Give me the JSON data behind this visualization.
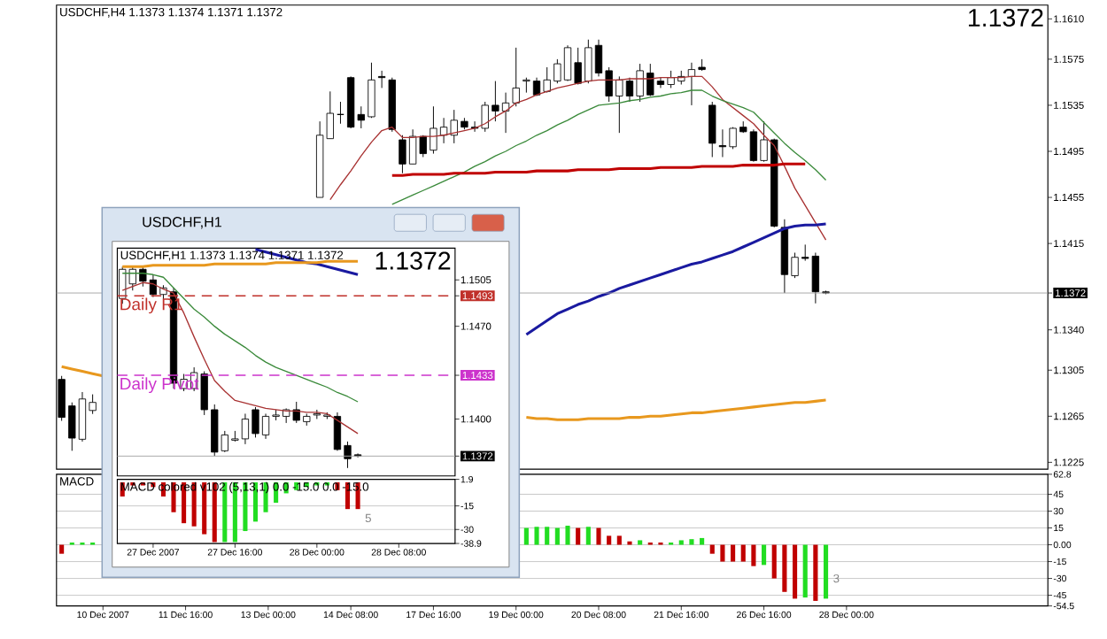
{
  "chart_data": [
    {
      "type": "candlestick",
      "title": "USDCHF,H4  1.1373 1.1374 1.1371 1.1372",
      "annotations": [
        "1.1372"
      ],
      "categories": [
        null,
        null,
        null,
        null,
        null,
        null,
        null,
        null,
        null,
        null,
        null,
        null,
        null,
        null,
        null,
        null,
        null,
        null,
        null,
        null,
        null,
        null,
        null,
        null,
        null,
        null,
        null,
        null,
        null,
        null,
        null,
        null,
        null,
        null,
        null,
        null,
        null,
        null,
        null,
        null,
        null,
        null,
        null,
        null,
        null,
        null,
        null,
        null,
        null,
        null,
        null,
        null,
        null,
        null,
        null,
        null,
        null,
        null,
        null,
        null,
        null,
        null,
        null,
        null,
        null,
        null,
        null,
        null,
        null,
        null,
        null,
        null,
        null,
        null,
        null,
        null,
        null,
        null,
        null,
        null,
        null,
        null,
        null,
        null,
        null,
        null,
        null,
        null,
        null,
        null,
        null,
        null,
        null,
        null,
        null,
        null
      ],
      "ohlc": [
        [
          1.1297,
          1.13,
          1.1261,
          1.1264
        ],
        [
          1.1274,
          1.1277,
          1.1235,
          1.1246
        ],
        [
          1.1245,
          1.1286,
          1.1243,
          1.128
        ],
        [
          1.127,
          1.1284,
          1.1267,
          1.1277
        ],
        null,
        null,
        null,
        null,
        null,
        null,
        null,
        null,
        null,
        null,
        null,
        null,
        null,
        null,
        null,
        null,
        null,
        null,
        null,
        null,
        null,
        [
          1.1455,
          1.1521,
          1.1455,
          1.1509
        ],
        [
          1.1506,
          1.1547,
          1.1506,
          1.1528
        ],
        [
          1.1527,
          1.1538,
          1.1519,
          1.1527
        ],
        [
          1.1559,
          1.156,
          1.1515,
          1.1516
        ],
        [
          1.1527,
          1.1534,
          1.1515,
          1.1522
        ],
        [
          1.1525,
          1.1572,
          1.1524,
          1.1557
        ],
        [
          1.156,
          1.1565,
          1.155,
          1.1559
        ],
        [
          1.1557,
          1.1559,
          1.1512,
          1.1514
        ],
        [
          1.1505,
          1.1509,
          1.1476,
          1.1484
        ],
        [
          1.1484,
          1.1514,
          1.1484,
          1.1508
        ],
        [
          1.1508,
          1.1509,
          1.149,
          1.1493
        ],
        [
          1.1496,
          1.1534,
          1.1493,
          1.1515
        ],
        [
          1.1509,
          1.1524,
          1.1502,
          1.1516
        ],
        [
          1.1509,
          1.1531,
          1.1502,
          1.1522
        ],
        [
          1.1521,
          1.1524,
          1.1514,
          1.1516
        ],
        [
          1.1516,
          1.1521,
          1.1512,
          1.1515
        ],
        [
          1.1515,
          1.1538,
          1.1512,
          1.1535
        ],
        [
          1.1535,
          1.1556,
          1.1521,
          1.153
        ],
        [
          1.153,
          1.1546,
          1.1511,
          1.1537
        ],
        [
          1.1537,
          1.1585,
          1.1534,
          1.155
        ],
        [
          1.1556,
          1.1559,
          1.1546,
          1.1557
        ],
        [
          1.1556,
          1.1559,
          1.1543,
          1.1544
        ],
        [
          1.1547,
          1.1568,
          1.1546,
          1.1557
        ],
        [
          1.1556,
          1.1575,
          1.1554,
          1.1571
        ],
        [
          1.1557,
          1.1587,
          1.1556,
          1.1585
        ],
        [
          1.1572,
          1.1585,
          1.1553,
          1.1554
        ],
        [
          1.1556,
          1.1592,
          1.1554,
          1.1585
        ],
        [
          1.1587,
          1.1592,
          1.156,
          1.1563
        ],
        [
          1.1565,
          1.1568,
          1.1538,
          1.1543
        ],
        [
          1.1543,
          1.156,
          1.1511,
          1.1557
        ],
        [
          1.1556,
          1.1559,
          1.1538,
          1.1543
        ],
        [
          1.1543,
          1.1571,
          1.1538,
          1.1565
        ],
        [
          1.1563,
          1.1571,
          1.1543,
          1.1544
        ],
        [
          1.1556,
          1.1559,
          1.155,
          1.1553
        ],
        [
          1.1553,
          1.1565,
          1.155,
          1.1559
        ],
        [
          1.1556,
          1.1565,
          1.1553,
          1.156
        ],
        [
          1.156,
          1.1572,
          1.1535,
          1.1566
        ],
        [
          1.1568,
          1.1575,
          1.1565,
          1.1566
        ],
        [
          1.1535,
          1.1538,
          1.149,
          1.1502
        ],
        [
          1.15,
          1.1514,
          1.149,
          1.1499
        ],
        [
          1.1499,
          1.1516,
          1.1497,
          1.1515
        ],
        [
          1.1516,
          1.1521,
          1.1511,
          1.1512
        ],
        [
          1.1512,
          1.1514,
          1.1486,
          1.1487
        ],
        [
          1.1487,
          1.1521,
          1.1486,
          1.1505
        ],
        [
          1.1505,
          1.1506,
          1.1429,
          1.143
        ],
        [
          1.1429,
          1.1436,
          1.1372,
          1.1388
        ],
        [
          1.1387,
          1.1407,
          1.1385,
          1.1403
        ],
        [
          1.1403,
          1.1414,
          1.14,
          1.1402
        ],
        [
          1.1404,
          1.1407,
          1.1363,
          1.1373
        ],
        [
          1.1373,
          1.1374,
          1.1371,
          1.1372
        ],
        null,
        null,
        null,
        null,
        null,
        null,
        null,
        null,
        null,
        null,
        null,
        null,
        null,
        null,
        null,
        null,
        null,
        null,
        null,
        null,
        null
      ],
      "series": [
        {
          "type": "line",
          "color": "#a83232",
          "values": [
            null,
            null,
            null,
            null,
            null,
            null,
            null,
            null,
            null,
            null,
            null,
            null,
            null,
            null,
            null,
            null,
            null,
            null,
            null,
            null,
            null,
            null,
            null,
            null,
            null,
            null,
            1.1453,
            1.1466,
            1.1478,
            1.1491,
            1.1503,
            1.1513,
            1.1516,
            1.1507,
            1.1507,
            1.1508,
            1.1508,
            1.1509,
            1.1511,
            1.1513,
            1.1515,
            1.1519,
            1.1525,
            1.153,
            1.1537,
            1.154,
            1.1544,
            1.1547,
            1.155,
            1.1552,
            1.1554,
            1.1556,
            1.1557,
            1.1557,
            1.1557,
            1.1558,
            1.1558,
            1.1558,
            1.1559,
            1.1559,
            1.1559,
            1.156,
            1.156,
            1.1551,
            1.154,
            1.1533,
            1.1526,
            1.1519,
            1.1509,
            1.15,
            1.1482,
            1.1463,
            1.1448,
            1.1433,
            1.1418,
            null,
            null,
            null,
            null,
            null,
            null,
            null,
            null,
            null,
            null,
            null,
            null,
            null,
            null,
            null,
            null,
            null,
            null,
            null,
            null,
            null
          ]
        },
        {
          "type": "line",
          "color": "#3a8a3a",
          "values": [
            null,
            null,
            null,
            null,
            null,
            null,
            null,
            null,
            null,
            null,
            null,
            null,
            null,
            null,
            null,
            null,
            null,
            null,
            null,
            null,
            null,
            null,
            null,
            null,
            null,
            null,
            null,
            null,
            null,
            null,
            null,
            null,
            1.1449,
            1.1453,
            1.1457,
            1.1461,
            1.1465,
            1.1469,
            1.1473,
            1.1477,
            1.1482,
            1.1486,
            1.1491,
            1.1495,
            1.15,
            1.1504,
            1.1509,
            1.1513,
            1.1518,
            1.1522,
            1.1527,
            1.1531,
            1.1535,
            1.1536,
            1.1537,
            1.1539,
            1.154,
            1.1542,
            1.1543,
            1.1545,
            1.1546,
            1.1548,
            1.1548,
            1.1543,
            1.1539,
            1.1536,
            1.1533,
            1.1529,
            1.152,
            1.1511,
            1.1502,
            1.1494,
            1.1487,
            1.1479,
            1.147,
            null,
            null,
            null,
            null,
            null,
            null,
            null,
            null,
            null,
            null,
            null,
            null,
            null,
            null,
            null,
            null,
            null,
            null,
            null,
            null,
            null
          ]
        },
        {
          "type": "line",
          "color": "#1a1aa0",
          "values": [
            null,
            null,
            null,
            null,
            null,
            null,
            null,
            null,
            null,
            null,
            null,
            null,
            null,
            null,
            null,
            null,
            null,
            null,
            null,
            null,
            null,
            null,
            null,
            null,
            null,
            null,
            null,
            null,
            null,
            null,
            null,
            null,
            null,
            null,
            null,
            null,
            null,
            null,
            null,
            null,
            null,
            null,
            null,
            null,
            null,
            1.1336,
            1.1342,
            1.1348,
            1.1354,
            1.1358,
            1.1362,
            1.1365,
            1.1369,
            1.1372,
            1.1376,
            1.1379,
            1.1382,
            1.1385,
            1.1388,
            1.1391,
            1.1394,
            1.1397,
            1.1399,
            1.1402,
            1.1405,
            1.1408,
            1.1412,
            1.1416,
            1.142,
            1.1424,
            1.1428,
            1.143,
            1.1431,
            1.1431,
            1.1432,
            null,
            null,
            null,
            null,
            null,
            null,
            null,
            null,
            null,
            null,
            null,
            null,
            null,
            null,
            null,
            null,
            null,
            null,
            null,
            null,
            null
          ]
        },
        {
          "type": "line",
          "color": "#e8981e",
          "values": [
            1.1308,
            1.1306,
            1.1304,
            1.1302,
            1.13,
            null,
            null,
            null,
            null,
            null,
            null,
            null,
            null,
            null,
            null,
            null,
            null,
            null,
            null,
            null,
            null,
            null,
            null,
            null,
            null,
            null,
            null,
            null,
            null,
            null,
            null,
            null,
            null,
            null,
            null,
            null,
            null,
            null,
            null,
            null,
            null,
            null,
            null,
            null,
            null,
            1.1264,
            1.1263,
            1.1263,
            1.1262,
            1.1262,
            1.1262,
            1.1263,
            1.1263,
            1.1263,
            1.1263,
            1.1264,
            1.1264,
            1.1265,
            1.1265,
            1.1266,
            1.1267,
            1.1268,
            1.1268,
            1.1269,
            1.127,
            1.1271,
            1.1272,
            1.1273,
            1.1274,
            1.1275,
            1.1276,
            1.1277,
            1.1277,
            1.1278,
            1.1279,
            null,
            null,
            null,
            null,
            null,
            null,
            null,
            null,
            null,
            null,
            null,
            null,
            null,
            null,
            null,
            null,
            null,
            null,
            null,
            null,
            null
          ]
        },
        {
          "type": "line",
          "color": "#c00000",
          "values": [
            null,
            null,
            null,
            null,
            null,
            null,
            null,
            null,
            null,
            null,
            null,
            null,
            null,
            null,
            null,
            null,
            null,
            null,
            null,
            null,
            null,
            null,
            null,
            null,
            null,
            null,
            null,
            null,
            null,
            null,
            null,
            null,
            1.1474,
            1.1474,
            1.1475,
            1.1475,
            1.1475,
            1.1475,
            1.1476,
            1.1476,
            1.1476,
            1.1476,
            1.1477,
            1.1477,
            1.1477,
            1.1477,
            1.1478,
            1.1478,
            1.1478,
            1.1478,
            1.1479,
            1.1479,
            1.1479,
            1.1479,
            1.148,
            1.148,
            1.148,
            1.148,
            1.1481,
            1.1481,
            1.1481,
            1.1481,
            1.1482,
            1.1482,
            1.1482,
            1.1482,
            1.1483,
            1.1483,
            1.1483,
            1.1483,
            1.1484,
            1.1484,
            1.1484,
            null,
            null,
            null,
            null,
            null,
            null,
            null,
            null,
            null,
            null,
            null,
            null,
            null,
            null,
            null,
            null,
            null,
            null,
            null,
            null,
            null,
            null,
            null
          ]
        }
      ],
      "ylim": [
        1.1219,
        1.1622
      ],
      "yticks": [
        {
          "value": 1.161,
          "label": "1.1610"
        },
        1.1575,
        1.1535,
        1.1495,
        1.1455,
        1.1415,
        1.1372,
        {
          "value": 1.134,
          "label": "1.1340"
        },
        1.1305,
        1.1265,
        1.1225
      ],
      "ref_lines": [
        {
          "axis": "y",
          "value": 1.1372,
          "color": "#a6a6a6"
        }
      ]
    },
    {
      "type": "bar",
      "title": "MACD",
      "annotations": [
        "3"
      ],
      "grid": "y",
      "categories": [
        null,
        null,
        null,
        null,
        "10 Dec 2007",
        null,
        null,
        null,
        null,
        null,
        null,
        null,
        "11 Dec 16:00",
        null,
        null,
        null,
        null,
        null,
        null,
        null,
        "13 Dec 00:00",
        null,
        null,
        null,
        null,
        null,
        null,
        null,
        "14 Dec 08:00",
        null,
        null,
        null,
        null,
        null,
        null,
        null,
        "17 Dec 16:00",
        null,
        null,
        null,
        null,
        null,
        null,
        null,
        "19 Dec 00:00",
        null,
        null,
        null,
        null,
        null,
        null,
        null,
        "20 Dec 08:00",
        null,
        null,
        null,
        null,
        null,
        null,
        null,
        "21 Dec 16:00",
        null,
        null,
        null,
        null,
        null,
        null,
        null,
        "26 Dec 16:00",
        null,
        null,
        null,
        null,
        null,
        null,
        null,
        "28 Dec 00:00",
        null,
        null,
        null,
        null,
        null,
        null,
        null,
        null,
        null,
        null,
        null,
        null,
        null,
        null,
        null,
        null,
        null,
        null,
        null
      ],
      "values": [
        -8,
        2,
        2,
        2,
        null,
        null,
        null,
        null,
        null,
        null,
        null,
        null,
        null,
        null,
        null,
        null,
        null,
        null,
        null,
        null,
        null,
        null,
        null,
        null,
        null,
        null,
        null,
        null,
        null,
        null,
        null,
        null,
        null,
        null,
        null,
        null,
        null,
        null,
        null,
        null,
        null,
        null,
        null,
        null,
        null,
        15,
        16,
        16,
        15,
        17,
        15,
        16,
        15,
        8,
        8,
        3,
        4,
        2,
        2,
        2,
        4,
        5,
        6,
        -8,
        -15,
        -15,
        -15,
        -19,
        -18,
        -30,
        -42,
        -48,
        -47,
        -50,
        -48,
        null,
        null,
        null,
        null,
        null,
        null,
        null,
        null,
        null,
        null,
        null,
        null,
        null,
        null,
        null,
        null,
        null,
        null,
        null,
        null,
        null
      ],
      "colors": [
        "#c00000",
        "#22dd22",
        "#22dd22",
        "#22dd22",
        null,
        null,
        null,
        null,
        null,
        null,
        null,
        null,
        null,
        null,
        null,
        null,
        null,
        null,
        null,
        null,
        null,
        null,
        null,
        null,
        null,
        null,
        null,
        null,
        null,
        null,
        null,
        null,
        null,
        null,
        null,
        null,
        null,
        null,
        null,
        null,
        null,
        null,
        null,
        null,
        null,
        "#22dd22",
        "#22dd22",
        "#22dd22",
        "#22dd22",
        "#22dd22",
        "#c00000",
        "#22dd22",
        "#c00000",
        "#c00000",
        "#c00000",
        "#c00000",
        "#22dd22",
        "#c00000",
        "#c00000",
        "#22dd22",
        "#22dd22",
        "#22dd22",
        "#22dd22",
        "#c00000",
        "#c00000",
        "#c00000",
        "#c00000",
        "#c00000",
        "#22dd22",
        "#c00000",
        "#c00000",
        "#c00000",
        "#22dd22",
        "#c00000",
        "#22dd22",
        null,
        null,
        null,
        null,
        null,
        null,
        null,
        null,
        null,
        null,
        null,
        null,
        null,
        null,
        null,
        null,
        null,
        null,
        null,
        null,
        null
      ],
      "ylim": [
        -54.5,
        62.8
      ],
      "yticks": [
        62.8,
        45,
        30,
        15,
        {
          "value": 0,
          "label": "0.00"
        },
        -15,
        -30,
        -45,
        -54.5
      ]
    },
    {
      "type": "candlestick",
      "title": "USDCHF,H1",
      "subtitle": "USDCHF,H1  1.1373 1.1374 1.1371 1.1372",
      "annotations": [
        "1.1372"
      ],
      "categories": [
        null,
        null,
        null,
        null,
        null,
        null,
        null,
        null,
        null,
        null,
        null,
        null,
        null,
        null,
        null,
        null,
        null,
        null,
        null,
        null,
        null,
        null,
        null,
        null,
        null,
        null,
        null,
        null,
        null,
        null,
        null,
        null,
        null
      ],
      "ohlc": [
        [
          1.1491,
          1.1515,
          1.1487,
          1.1513
        ],
        [
          1.1502,
          1.1515,
          1.1497,
          1.1513
        ],
        [
          1.1513,
          1.1515,
          1.15,
          1.1504
        ],
        [
          1.1505,
          1.1509,
          1.1492,
          1.1494
        ],
        [
          1.1494,
          1.1501,
          1.149,
          1.1499
        ],
        [
          1.1496,
          1.1499,
          1.1423,
          1.1427
        ],
        [
          1.1423,
          1.1434,
          1.1421,
          1.143
        ],
        [
          1.1423,
          1.1439,
          1.1421,
          1.1435
        ],
        [
          1.1434,
          1.1436,
          1.1403,
          1.1407
        ],
        [
          1.1407,
          1.1411,
          1.1372,
          1.1375
        ],
        [
          1.1376,
          1.1391,
          1.1375,
          1.1388
        ],
        [
          1.1384,
          1.1391,
          1.1383,
          1.1385
        ],
        [
          1.1385,
          1.1404,
          1.1381,
          1.14
        ],
        [
          1.1407,
          1.1409,
          1.1386,
          1.1389
        ],
        [
          1.1388,
          1.1404,
          1.1385,
          1.1402
        ],
        [
          1.1402,
          1.1407,
          1.1399,
          1.1403
        ],
        [
          1.1402,
          1.1408,
          1.1397,
          1.1407
        ],
        [
          1.1407,
          1.1413,
          1.1397,
          1.1399
        ],
        [
          1.1398,
          1.1404,
          1.1395,
          1.1402
        ],
        [
          1.1403,
          1.1407,
          1.14,
          1.1404
        ],
        [
          1.1402,
          1.1405,
          1.14,
          1.1403
        ],
        [
          1.1402,
          1.1405,
          1.1376,
          1.1377
        ],
        [
          1.138,
          1.1383,
          1.1363,
          1.137
        ],
        [
          1.1373,
          1.1374,
          1.1371,
          1.1372
        ],
        null,
        null,
        null,
        null,
        null,
        null,
        null,
        null,
        null
      ],
      "series": [
        {
          "type": "line",
          "color": "#a83232",
          "values": [
            1.1497,
            1.15,
            1.1503,
            1.1502,
            1.1498,
            1.1495,
            1.148,
            1.1462,
            1.1445,
            1.1429,
            1.1421,
            1.1414,
            1.1412,
            1.141,
            1.1408,
            1.1407,
            1.1406,
            1.1406,
            1.1405,
            1.1405,
            1.1404,
            1.1399,
            1.1394,
            1.1389,
            null,
            null,
            null,
            null,
            null,
            null,
            null,
            null,
            null
          ]
        },
        {
          "type": "line",
          "color": "#3a8a3a",
          "values": [
            1.151,
            1.151,
            1.151,
            1.1509,
            1.1507,
            1.1499,
            1.1491,
            1.1483,
            1.1477,
            1.147,
            1.1464,
            1.1459,
            1.1454,
            1.1448,
            1.1443,
            1.1439,
            1.1436,
            1.1433,
            1.143,
            1.1427,
            1.1424,
            1.142,
            1.1417,
            1.1413,
            null,
            null,
            null,
            null,
            null,
            null,
            null,
            null,
            null
          ]
        },
        {
          "type": "line",
          "color": "#1a1aa0",
          "values": [
            null,
            null,
            null,
            null,
            null,
            null,
            null,
            null,
            null,
            null,
            null,
            null,
            null,
            1.1528,
            1.1526,
            1.1524,
            1.1522,
            1.152,
            1.1518,
            1.1517,
            1.1515,
            1.1513,
            1.1511,
            1.1509,
            null,
            null,
            null,
            null,
            null,
            null,
            null,
            null,
            null
          ]
        },
        {
          "type": "line",
          "color": "#e8981e",
          "values": [
            1.1515,
            1.1515,
            1.1515,
            1.1516,
            1.1516,
            1.1516,
            1.1516,
            1.1516,
            1.1516,
            1.1517,
            1.1517,
            1.1517,
            1.1517,
            1.1517,
            1.1517,
            1.1518,
            1.1518,
            1.1518,
            1.1518,
            1.1518,
            1.1519,
            1.1519,
            1.1519,
            1.1519,
            null,
            null,
            null,
            null,
            null,
            null,
            null,
            null,
            null
          ]
        }
      ],
      "ylim": [
        1.1357,
        1.1529
      ],
      "yticks": [
        1.1505,
        1.1493,
        {
          "value": 1.147,
          "label": "1.1470"
        },
        1.1433,
        {
          "value": 1.14,
          "label": "1.1400"
        },
        1.1372
      ],
      "ref_lines": [
        {
          "axis": "y",
          "value": 1.1493,
          "label": "Daily R1",
          "color": "#c0302a",
          "line_style": "dashed"
        },
        {
          "axis": "y",
          "value": 1.1433,
          "label": "Daily Pivot",
          "color": "#cc33cc",
          "line_style": "dashed"
        },
        {
          "axis": "y",
          "value": 1.1372,
          "color": "#a6a6a6"
        }
      ]
    },
    {
      "type": "bar",
      "title": "MACD colored v102 (5,13,1) 0.0 -15.0 0.0 -15.0",
      "annotations": [
        "5"
      ],
      "grid": "y",
      "categories": [
        null,
        null,
        null,
        "27 Dec 2007",
        null,
        null,
        null,
        null,
        null,
        null,
        null,
        "27 Dec 16:00",
        null,
        null,
        null,
        null,
        null,
        null,
        null,
        "28 Dec 00:00",
        null,
        null,
        null,
        null,
        null,
        null,
        null,
        "28 Dec 08:00",
        null,
        null,
        null,
        null,
        null
      ],
      "values": [
        -9,
        -2,
        -2,
        -3,
        -9,
        -19,
        -26,
        -28,
        -33,
        -38,
        -38,
        -38,
        -31,
        -25,
        -19,
        -13,
        -7,
        -5,
        -3,
        -2,
        -2,
        -5,
        -17,
        -17,
        null,
        null,
        null,
        null,
        null,
        null,
        null,
        null,
        null
      ],
      "colors": [
        "#c00000",
        "#c00000",
        "#c00000",
        "#c00000",
        "#c00000",
        "#c00000",
        "#c00000",
        "#c00000",
        "#c00000",
        "#c00000",
        "#22dd22",
        "#22dd22",
        "#22dd22",
        "#22dd22",
        "#22dd22",
        "#22dd22",
        "#22dd22",
        "#22dd22",
        "#22dd22",
        "#22dd22",
        "#22dd22",
        "#c00000",
        "#c00000",
        "#c00000",
        null,
        null,
        null,
        null,
        null,
        null,
        null,
        null,
        null
      ],
      "ylim": [
        -38.9,
        1.9
      ],
      "yticks": [
        1.9,
        -15,
        -30,
        -38.9
      ]
    }
  ]
}
